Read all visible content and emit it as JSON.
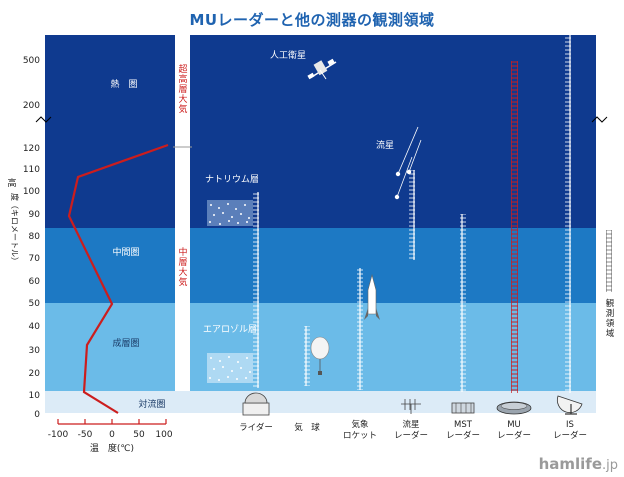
{
  "title": "MUレーダーと他の測器の観測領域",
  "y_axis": {
    "label_main": "高",
    "label_sub": "度（キロメートル）",
    "ticks": [
      "0",
      "10",
      "20",
      "30",
      "40",
      "50",
      "60",
      "70",
      "80",
      "90",
      "100",
      "110",
      "120",
      "200",
      "500"
    ]
  },
  "temp_axis": {
    "ticks": [
      "-100",
      "-50",
      "0",
      "50",
      "100"
    ],
    "label": "温　度(℃)"
  },
  "layers": {
    "thermosphere": "熱　圏",
    "mesosphere": "中間圏",
    "stratosphere": "成層圏",
    "troposphere": "対流圏"
  },
  "atmosphere_labels": {
    "upper": [
      "超",
      "高",
      "層",
      "大",
      "気"
    ],
    "middle": [
      "中",
      "層",
      "大",
      "気"
    ]
  },
  "features": {
    "satellite": "人工衛星",
    "meteor": "流星",
    "sodium": "ナトリウム層",
    "aerosol": "エアロゾル層"
  },
  "instruments": [
    {
      "id": "lidar",
      "lines": [
        "ライダー"
      ]
    },
    {
      "id": "balloon",
      "lines": [
        "気　球"
      ]
    },
    {
      "id": "rocket",
      "lines": [
        "気象",
        "ロケット"
      ]
    },
    {
      "id": "meteor-radar",
      "lines": [
        "流星",
        "レーダー"
      ]
    },
    {
      "id": "mst-radar",
      "lines": [
        "MST",
        "レーダー"
      ]
    },
    {
      "id": "mu-radar",
      "lines": [
        "MU",
        "レーダー"
      ]
    },
    {
      "id": "is-radar",
      "lines": [
        "IS",
        "レーダー"
      ]
    }
  ],
  "side_label": [
    "観",
    "測",
    "領",
    "域"
  ],
  "watermark": {
    "brand": "hamlife",
    "suffix": ".jp"
  },
  "colors": {
    "thermosphere": "#0f3a8f",
    "mesosphere": "#1d79c4",
    "stratosphere": "#6bbbe8",
    "troposphere": "#dcebf7",
    "temperature_curve": "#cc1d1d",
    "mu_radar": "#cc1d1d",
    "title": "#1f63b0"
  }
}
